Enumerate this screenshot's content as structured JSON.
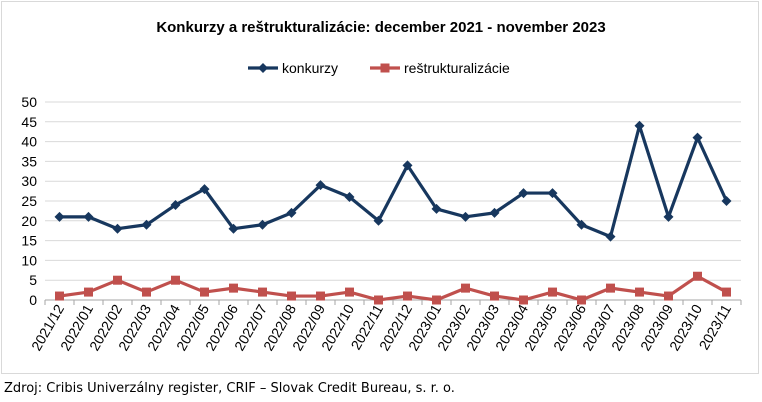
{
  "chart_data": {
    "type": "line",
    "title": "Konkurzy a reštrukturalizácie: december 2021 - november 2023",
    "xlabel": "",
    "ylabel": "",
    "ylim": [
      0,
      50
    ],
    "yticks": [
      0,
      5,
      10,
      15,
      20,
      25,
      30,
      35,
      40,
      45,
      50
    ],
    "grid": true,
    "legend_position": "top",
    "categories": [
      "2021/12",
      "2022/01",
      "2022/02",
      "2022/03",
      "2022/04",
      "2022/05",
      "2022/06",
      "2022/07",
      "2022/08",
      "2022/09",
      "2022/10",
      "2022/11",
      "2022/12",
      "2023/01",
      "2023/02",
      "2023/03",
      "2023/04",
      "2023/05",
      "2023/06",
      "2023/07",
      "2023/08",
      "2023/09",
      "2023/10",
      "2023/11"
    ],
    "series": [
      {
        "name": "konkurzy",
        "color": "#17375e",
        "marker": "diamond",
        "values": [
          21,
          21,
          18,
          19,
          24,
          28,
          18,
          19,
          22,
          29,
          26,
          20,
          34,
          23,
          21,
          22,
          27,
          27,
          19,
          16,
          44,
          21,
          41,
          25
        ]
      },
      {
        "name": "reštrukturalizácie",
        "color": "#c0504d",
        "marker": "square",
        "values": [
          1,
          2,
          5,
          2,
          5,
          2,
          3,
          2,
          1,
          1,
          2,
          0,
          1,
          0,
          3,
          1,
          0,
          2,
          0,
          3,
          2,
          1,
          6,
          2
        ]
      }
    ]
  },
  "source": "Zdroj: Cribis Univerzálny register, CRIF – Slovak Credit Bureau, s. r. o."
}
